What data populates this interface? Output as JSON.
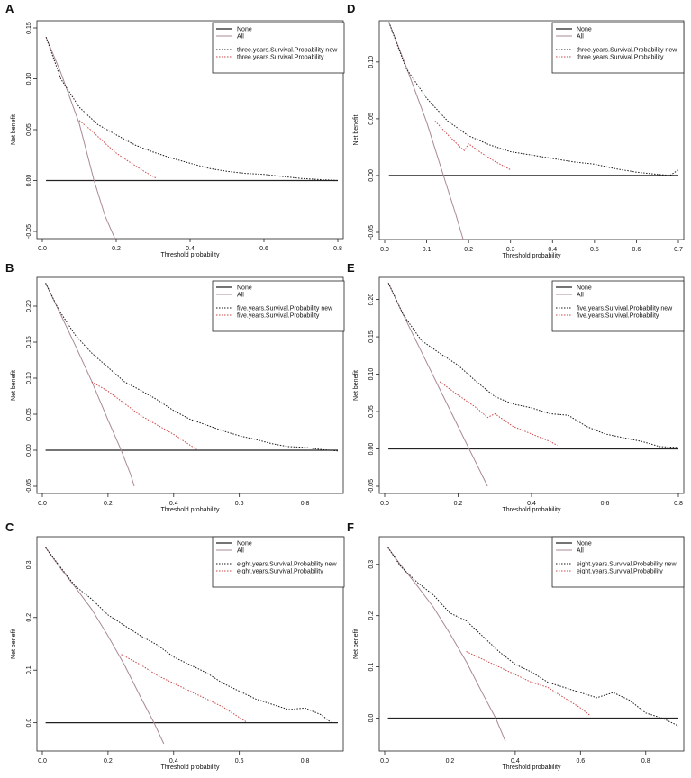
{
  "colors": {
    "none": "#222222",
    "all": "#a98898",
    "new": "#1a1a1a",
    "old": "#cc4444"
  },
  "chart_data": [
    {
      "panel": "A",
      "type": "line",
      "xlabel": "Threshold probability",
      "ylabel": "Net benefit",
      "xlim": [
        0,
        0.8
      ],
      "ylim": [
        -0.05,
        0.15
      ],
      "xticks": [
        "0.0",
        "0.2",
        "0.4",
        "0.6",
        "0.8"
      ],
      "yticks": [
        "-0.05",
        "0.00",
        "0.05",
        "0.10",
        "0.15"
      ],
      "xtick_values": [
        0,
        0.2,
        0.4,
        0.6,
        0.8
      ],
      "ytick_values": [
        -0.05,
        0,
        0.05,
        0.1,
        0.15
      ],
      "legend": [
        "None",
        "All",
        "three.years.Survival.Probability new",
        "three.years.Survival.Probability"
      ],
      "series": [
        {
          "name": "None",
          "style": "none",
          "x": [
            0.01,
            0.8
          ],
          "y": [
            0,
            0
          ]
        },
        {
          "name": "All",
          "style": "all",
          "x": [
            0.01,
            0.05,
            0.1,
            0.14,
            0.17,
            0.2
          ],
          "y": [
            0.141,
            0.106,
            0.056,
            0.0,
            -0.035,
            -0.06
          ]
        },
        {
          "name": "three.years.Survival.Probability new",
          "style": "new",
          "x": [
            0.01,
            0.05,
            0.1,
            0.15,
            0.2,
            0.25,
            0.3,
            0.35,
            0.4,
            0.45,
            0.5,
            0.55,
            0.6,
            0.65,
            0.7,
            0.75,
            0.8
          ],
          "y": [
            0.141,
            0.1,
            0.072,
            0.055,
            0.045,
            0.035,
            0.028,
            0.022,
            0.017,
            0.012,
            0.009,
            0.007,
            0.006,
            0.004,
            0.002,
            0.001,
            0.0
          ]
        },
        {
          "name": "three.years.Survival.Probability",
          "style": "old",
          "x": [
            0.1,
            0.13,
            0.16,
            0.19,
            0.2,
            0.22,
            0.25,
            0.28,
            0.31
          ],
          "y": [
            0.059,
            0.05,
            0.04,
            0.03,
            0.027,
            0.022,
            0.015,
            0.008,
            0.002
          ]
        }
      ]
    },
    {
      "panel": "D",
      "type": "line",
      "xlabel": "Threshold probability",
      "ylabel": "Net benefit",
      "xlim": [
        0,
        0.7
      ],
      "ylim": [
        -0.05,
        0.13
      ],
      "xticks": [
        "0.0",
        "0.1",
        "0.2",
        "0.3",
        "0.4",
        "0.5",
        "0.6",
        "0.7"
      ],
      "yticks": [
        "-0.05",
        "0.00",
        "0.05",
        "0.10"
      ],
      "xtick_values": [
        0,
        0.1,
        0.2,
        0.3,
        0.4,
        0.5,
        0.6,
        0.7
      ],
      "ytick_values": [
        -0.05,
        0,
        0.05,
        0.1
      ],
      "legend": [
        "None",
        "All",
        "three.years.Survival.Probability new",
        "three.years.Survival.Probability"
      ],
      "series": [
        {
          "name": "None",
          "style": "none",
          "x": [
            0.01,
            0.7
          ],
          "y": [
            0,
            0
          ]
        },
        {
          "name": "All",
          "style": "all",
          "x": [
            0.01,
            0.05,
            0.1,
            0.14,
            0.17,
            0.19
          ],
          "y": [
            0.135,
            0.097,
            0.047,
            0.0,
            -0.035,
            -0.06
          ]
        },
        {
          "name": "three.years.Survival.Probability new",
          "style": "new",
          "x": [
            0.01,
            0.05,
            0.1,
            0.15,
            0.2,
            0.25,
            0.3,
            0.35,
            0.4,
            0.45,
            0.5,
            0.55,
            0.6,
            0.65,
            0.68,
            0.7
          ],
          "y": [
            0.135,
            0.095,
            0.068,
            0.048,
            0.035,
            0.027,
            0.021,
            0.018,
            0.015,
            0.012,
            0.01,
            0.006,
            0.003,
            0.001,
            0.0,
            0.005
          ]
        },
        {
          "name": "three.years.Survival.Probability",
          "style": "old",
          "x": [
            0.12,
            0.15,
            0.18,
            0.19,
            0.2,
            0.23,
            0.26,
            0.3
          ],
          "y": [
            0.048,
            0.036,
            0.025,
            0.022,
            0.028,
            0.02,
            0.013,
            0.005
          ]
        }
      ]
    },
    {
      "panel": "B",
      "type": "line",
      "xlabel": "Threshold probability",
      "ylabel": "Net benefit",
      "xlim": [
        0,
        0.9
      ],
      "ylim": [
        -0.05,
        0.23
      ],
      "xticks": [
        "0.0",
        "0.2",
        "0.4",
        "0.6",
        "0.8"
      ],
      "yticks": [
        "-0.05",
        "0.00",
        "0.05",
        "0.10",
        "0.15",
        "0.20"
      ],
      "xtick_values": [
        0,
        0.2,
        0.4,
        0.6,
        0.8
      ],
      "ytick_values": [
        -0.05,
        0,
        0.05,
        0.1,
        0.15,
        0.2
      ],
      "legend": [
        "None",
        "All",
        "five.years.Survival.Probability new",
        "five.years.Survival.Probability"
      ],
      "series": [
        {
          "name": "None",
          "style": "none",
          "x": [
            0.01,
            0.9
          ],
          "y": [
            0,
            0
          ]
        },
        {
          "name": "All",
          "style": "all",
          "x": [
            0.01,
            0.05,
            0.1,
            0.15,
            0.2,
            0.24,
            0.27,
            0.28
          ],
          "y": [
            0.232,
            0.194,
            0.146,
            0.096,
            0.042,
            0.0,
            -0.035,
            -0.05
          ]
        },
        {
          "name": "five.years.Survival.Probability new",
          "style": "new",
          "x": [
            0.01,
            0.05,
            0.1,
            0.15,
            0.2,
            0.25,
            0.3,
            0.35,
            0.4,
            0.45,
            0.5,
            0.55,
            0.6,
            0.65,
            0.7,
            0.75,
            0.8,
            0.85,
            0.9
          ],
          "y": [
            0.232,
            0.195,
            0.16,
            0.135,
            0.115,
            0.095,
            0.083,
            0.07,
            0.055,
            0.043,
            0.035,
            0.027,
            0.02,
            0.015,
            0.009,
            0.005,
            0.004,
            0.001,
            -0.001
          ]
        },
        {
          "name": "five.years.Survival.Probability",
          "style": "old",
          "x": [
            0.15,
            0.2,
            0.25,
            0.3,
            0.35,
            0.4,
            0.44,
            0.47
          ],
          "y": [
            0.095,
            0.082,
            0.065,
            0.048,
            0.035,
            0.022,
            0.01,
            0.001
          ]
        }
      ]
    },
    {
      "panel": "E",
      "type": "line",
      "xlabel": "Threshold probability",
      "ylabel": "Net benefit",
      "xlim": [
        0,
        0.8
      ],
      "ylim": [
        -0.05,
        0.22
      ],
      "xticks": [
        "0.0",
        "0.2",
        "0.4",
        "0.6",
        "0.8"
      ],
      "yticks": [
        "-0.05",
        "0.00",
        "0.05",
        "0.10",
        "0.15",
        "0.20"
      ],
      "xtick_values": [
        0,
        0.2,
        0.4,
        0.6,
        0.8
      ],
      "ytick_values": [
        -0.05,
        0,
        0.05,
        0.1,
        0.15,
        0.2
      ],
      "legend": [
        "None",
        "All",
        "five.years.Survival.Probability new",
        "five.years.Survival.Probability"
      ],
      "series": [
        {
          "name": "None",
          "style": "none",
          "x": [
            0.01,
            0.8
          ],
          "y": [
            0,
            0
          ]
        },
        {
          "name": "All",
          "style": "all",
          "x": [
            0.01,
            0.05,
            0.1,
            0.15,
            0.2,
            0.23,
            0.26,
            0.28
          ],
          "y": [
            0.222,
            0.18,
            0.13,
            0.08,
            0.03,
            0.0,
            -0.03,
            -0.05
          ]
        },
        {
          "name": "five.years.Survival.Probability new",
          "style": "new",
          "x": [
            0.01,
            0.05,
            0.1,
            0.15,
            0.2,
            0.25,
            0.3,
            0.35,
            0.4,
            0.45,
            0.5,
            0.55,
            0.6,
            0.65,
            0.7,
            0.75,
            0.8
          ],
          "y": [
            0.222,
            0.18,
            0.145,
            0.128,
            0.112,
            0.09,
            0.07,
            0.06,
            0.055,
            0.047,
            0.045,
            0.03,
            0.02,
            0.015,
            0.01,
            0.003,
            0.002
          ]
        },
        {
          "name": "five.years.Survival.Probability",
          "style": "old",
          "x": [
            0.15,
            0.2,
            0.25,
            0.28,
            0.3,
            0.35,
            0.4,
            0.45,
            0.47
          ],
          "y": [
            0.09,
            0.072,
            0.055,
            0.042,
            0.047,
            0.03,
            0.02,
            0.01,
            0.005
          ]
        }
      ]
    },
    {
      "panel": "C",
      "type": "line",
      "xlabel": "Threshold probability",
      "ylabel": "Net benefit",
      "xlim": [
        0,
        0.9
      ],
      "ylim": [
        -0.04,
        0.34
      ],
      "xticks": [
        "0.0",
        "0.2",
        "0.4",
        "0.6",
        "0.8"
      ],
      "yticks": [
        "0.0",
        "0.1",
        "0.2",
        "0.3"
      ],
      "xtick_values": [
        0,
        0.2,
        0.4,
        0.6,
        0.8
      ],
      "ytick_values": [
        0,
        0.1,
        0.2,
        0.3
      ],
      "legend": [
        "None",
        "All",
        "eight.years.Survival.Probability new",
        "eight.years.Survival.Probability"
      ],
      "series": [
        {
          "name": "None",
          "style": "none",
          "x": [
            0.01,
            0.9
          ],
          "y": [
            0,
            0
          ]
        },
        {
          "name": "All",
          "style": "all",
          "x": [
            0.01,
            0.05,
            0.1,
            0.15,
            0.2,
            0.25,
            0.3,
            0.34,
            0.37
          ],
          "y": [
            0.333,
            0.298,
            0.258,
            0.216,
            0.165,
            0.11,
            0.048,
            0.0,
            -0.04
          ]
        },
        {
          "name": "eight.years.Survival.Probability new",
          "style": "new",
          "x": [
            0.01,
            0.05,
            0.1,
            0.15,
            0.2,
            0.25,
            0.3,
            0.35,
            0.4,
            0.45,
            0.5,
            0.55,
            0.6,
            0.65,
            0.7,
            0.75,
            0.8,
            0.85,
            0.88
          ],
          "y": [
            0.333,
            0.3,
            0.26,
            0.235,
            0.205,
            0.185,
            0.165,
            0.148,
            0.125,
            0.11,
            0.095,
            0.075,
            0.06,
            0.045,
            0.035,
            0.025,
            0.028,
            0.015,
            0.0
          ]
        },
        {
          "name": "eight.years.Survival.Probability",
          "style": "old",
          "x": [
            0.24,
            0.3,
            0.35,
            0.4,
            0.45,
            0.5,
            0.55,
            0.6,
            0.62
          ],
          "y": [
            0.13,
            0.11,
            0.09,
            0.075,
            0.06,
            0.045,
            0.03,
            0.01,
            0.002
          ]
        }
      ]
    },
    {
      "panel": "F",
      "type": "line",
      "xlabel": "Threshold probability",
      "ylabel": "Net benefit",
      "xlim": [
        0,
        0.9
      ],
      "ylim": [
        -0.05,
        0.34
      ],
      "xticks": [
        "0.0",
        "0.2",
        "0.4",
        "0.6",
        "0.8"
      ],
      "yticks": [
        "0.0",
        "0.1",
        "0.2",
        "0.3"
      ],
      "xtick_values": [
        0,
        0.2,
        0.4,
        0.6,
        0.8
      ],
      "ytick_values": [
        0,
        0.1,
        0.2,
        0.3
      ],
      "legend": [
        "None",
        "All",
        "eight.years.Survival.Probability new",
        "eight.years.Survival.Probability"
      ],
      "series": [
        {
          "name": "None",
          "style": "none",
          "x": [
            0.01,
            0.9
          ],
          "y": [
            0,
            0
          ]
        },
        {
          "name": "All",
          "style": "all",
          "x": [
            0.01,
            0.05,
            0.1,
            0.15,
            0.2,
            0.25,
            0.3,
            0.34,
            0.37
          ],
          "y": [
            0.333,
            0.298,
            0.258,
            0.216,
            0.165,
            0.11,
            0.048,
            0.0,
            -0.045
          ]
        },
        {
          "name": "eight.years.Survival.Probability new",
          "style": "new",
          "x": [
            0.01,
            0.05,
            0.1,
            0.15,
            0.2,
            0.25,
            0.3,
            0.35,
            0.4,
            0.45,
            0.5,
            0.55,
            0.6,
            0.65,
            0.7,
            0.75,
            0.8,
            0.85,
            0.9
          ],
          "y": [
            0.333,
            0.295,
            0.265,
            0.24,
            0.205,
            0.19,
            0.16,
            0.13,
            0.105,
            0.09,
            0.07,
            0.06,
            0.05,
            0.04,
            0.05,
            0.035,
            0.01,
            0.0,
            -0.015
          ]
        },
        {
          "name": "eight.years.Survival.Probability",
          "style": "old",
          "x": [
            0.25,
            0.3,
            0.35,
            0.4,
            0.45,
            0.5,
            0.55,
            0.6,
            0.63
          ],
          "y": [
            0.13,
            0.115,
            0.1,
            0.085,
            0.07,
            0.06,
            0.04,
            0.02,
            0.005
          ]
        }
      ]
    }
  ]
}
